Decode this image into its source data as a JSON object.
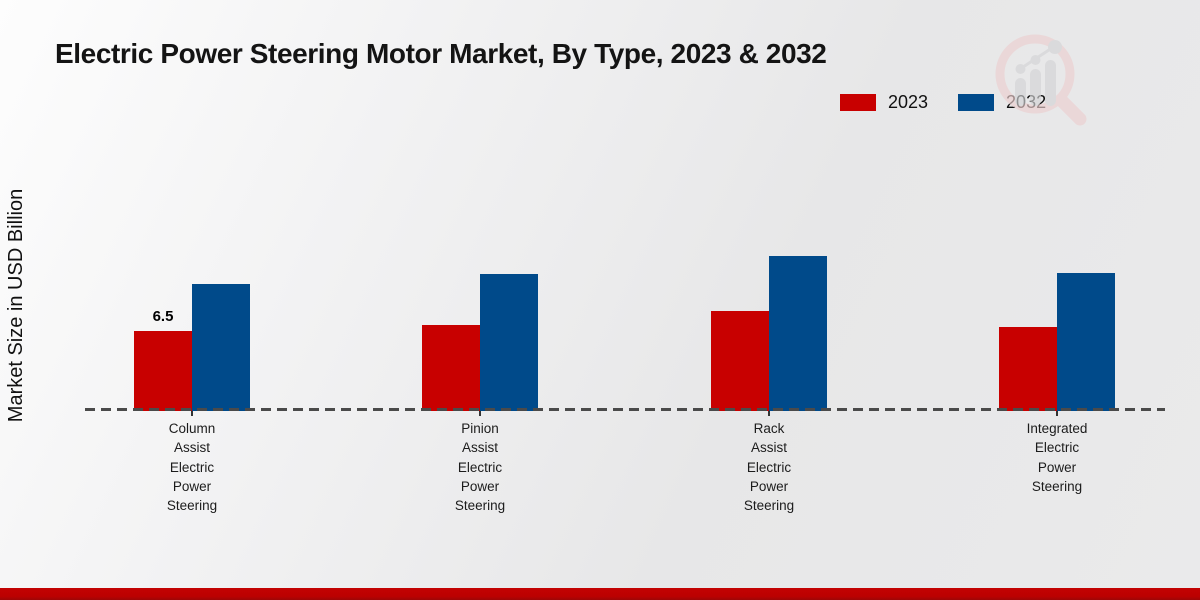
{
  "title": "Electric Power Steering Motor Market, By Type, 2023 & 2032",
  "y_axis_label": "Market Size in USD Billion",
  "legend": {
    "position": "top-right",
    "items": [
      {
        "label": "2023",
        "color": "#c80000"
      },
      {
        "label": "2032",
        "color": "#004a8a"
      }
    ]
  },
  "chart_data": {
    "type": "bar",
    "title": "Electric Power Steering Motor Market, By Type, 2023 & 2032",
    "categories": [
      "Column Assist Electric Power Steering",
      "Pinion Assist Electric Power Steering",
      "Rack Assist Electric Power Steering",
      "Integrated Electric Power Steering"
    ],
    "series": [
      {
        "name": "2023",
        "color": "#c80000",
        "values": [
          6.5,
          7.0,
          8.1,
          6.8
        ]
      },
      {
        "name": "2032",
        "color": "#004a8a",
        "values": [
          10.3,
          11.1,
          12.6,
          11.2
        ]
      }
    ],
    "data_labels": [
      {
        "series_index": 0,
        "category_index": 0,
        "text": "6.5"
      }
    ],
    "xlabel": "",
    "ylabel": "Market Size in USD Billion",
    "ylim": [
      0,
      22
    ],
    "grid": false,
    "y_axis_ticks_visible": false,
    "baseline_style": "dashed",
    "legend_position": "top-right"
  },
  "watermark": {
    "name": "market-research-logo",
    "circle_color": "#eccfcf",
    "bars_color": "#d4d4d6"
  },
  "footer": {
    "band_color": "#bb0101"
  }
}
